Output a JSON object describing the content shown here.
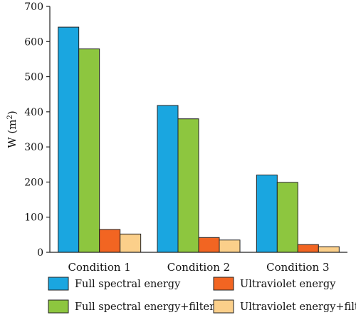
{
  "chart_data": {
    "type": "bar",
    "title": "",
    "xlabel": "",
    "ylabel": {
      "base": "W (m",
      "sup": "2",
      "close": ")"
    },
    "ylim": [
      0,
      700
    ],
    "yticks": [
      0,
      100,
      200,
      300,
      400,
      500,
      600,
      700
    ],
    "categories": [
      "Condition 1",
      "Condition 2",
      "Condition 3"
    ],
    "series": [
      {
        "name": "Full spectral energy",
        "color": "#1aa6e0",
        "values": [
          641,
          418,
          220
        ]
      },
      {
        "name": "Full spectral energy+filter",
        "color": "#8dc63f",
        "values": [
          579,
          380,
          199
        ]
      },
      {
        "name": "Ultraviolet energy",
        "color": "#f26522",
        "values": [
          65,
          42,
          22
        ]
      },
      {
        "name": "Ultraviolet energy+filter",
        "color": "#fbcf8a",
        "values": [
          52,
          35,
          16
        ]
      }
    ],
    "grid": false,
    "legend": {
      "placement": "bottom",
      "columns": 2,
      "order": [
        "Full spectral energy",
        "Ultraviolet energy",
        "Full spectral energy+filter",
        "Ultraviolet energy+filter"
      ]
    }
  }
}
